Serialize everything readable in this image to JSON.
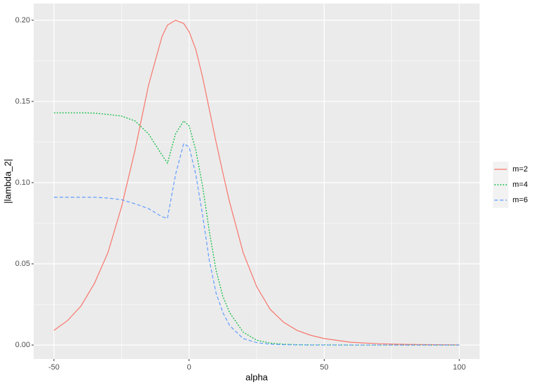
{
  "chart_data": {
    "type": "line",
    "xlabel": "alpha",
    "ylabel": "|lambda_2|",
    "x": [
      -50,
      -45,
      -40,
      -35,
      -30,
      -25,
      -20,
      -15,
      -10,
      -8,
      -5,
      -2,
      0,
      2.5,
      5,
      7.5,
      10,
      12.5,
      15,
      20,
      25,
      30,
      35,
      40,
      45,
      50,
      60,
      70,
      80,
      90,
      100
    ],
    "series": [
      {
        "name": "m=2",
        "color": "#f8766d",
        "linetype": "solid",
        "values": [
          0.009,
          0.015,
          0.024,
          0.038,
          0.057,
          0.085,
          0.12,
          0.16,
          0.19,
          0.197,
          0.2,
          0.198,
          0.193,
          0.182,
          0.165,
          0.145,
          0.125,
          0.106,
          0.088,
          0.057,
          0.036,
          0.022,
          0.014,
          0.009,
          0.006,
          0.004,
          0.0017,
          0.0008,
          0.0004,
          0.0002,
          0.0001
        ]
      },
      {
        "name": "m=4",
        "color": "#00ba38",
        "linetype": "dotted",
        "values": [
          0.143,
          0.143,
          0.143,
          0.1428,
          0.142,
          0.141,
          0.138,
          0.13,
          0.117,
          0.112,
          0.13,
          0.138,
          0.135,
          0.12,
          0.098,
          0.07,
          0.046,
          0.03,
          0.02,
          0.008,
          0.003,
          0.0012,
          0.0005,
          0.0002,
          0.0001,
          0.0001,
          0,
          0,
          0,
          0,
          0
        ]
      },
      {
        "name": "m=6",
        "color": "#619cff",
        "linetype": "dashed",
        "values": [
          0.091,
          0.091,
          0.091,
          0.091,
          0.0905,
          0.0895,
          0.087,
          0.084,
          0.079,
          0.078,
          0.105,
          0.124,
          0.122,
          0.105,
          0.08,
          0.052,
          0.032,
          0.02,
          0.012,
          0.004,
          0.0015,
          0.0005,
          0.0002,
          0.0001,
          0,
          0,
          0,
          0,
          0,
          0,
          0
        ]
      }
    ],
    "xlim": [
      -57.5,
      107.5
    ],
    "xticks": [
      -50,
      0,
      50,
      100
    ],
    "ylim": [
      -0.0086,
      0.2103
    ],
    "yticks": [
      {
        "value": 0,
        "label": "0.00"
      },
      {
        "value": 0.05,
        "label": "0.05"
      },
      {
        "value": 0.1,
        "label": "0.10"
      },
      {
        "value": 0.15,
        "label": "0.15"
      },
      {
        "value": 0.2,
        "label": "0.20"
      }
    ],
    "x_minor_ticks": [
      -25,
      25,
      75
    ],
    "y_minor_ticks": [
      0.025,
      0.075,
      0.125,
      0.175
    ],
    "grid": true,
    "legend": "right"
  }
}
